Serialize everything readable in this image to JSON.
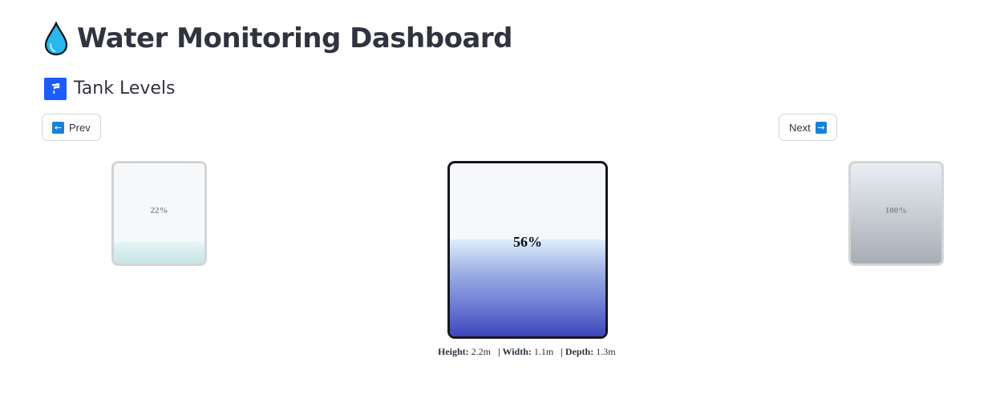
{
  "header": {
    "title": "Water Monitoring Dashboard",
    "icon": "water-drop-icon"
  },
  "section": {
    "title": "Tank Levels",
    "icon": "faucet-icon"
  },
  "nav": {
    "prev_label": "Prev",
    "prev_arrow": "←",
    "next_label": "Next",
    "next_arrow": "→"
  },
  "tanks": {
    "left": {
      "level_label": "22%",
      "level": 0.22
    },
    "center": {
      "level_label": "56%",
      "level": 0.56
    },
    "right": {
      "level_label": "100%",
      "level": 1.0
    }
  },
  "dimensions": {
    "height_label": "Height:",
    "height_value": "2.2m",
    "width_label": "| Width:",
    "width_value": "1.1m",
    "depth_label": "| Depth:",
    "depth_value": "1.3m"
  },
  "colors": {
    "accent_blue": "#1a5cff",
    "tank_border_active": "#16171a",
    "tank_border_inactive": "#d3d4d6",
    "water_deep": "#3c46bd"
  }
}
